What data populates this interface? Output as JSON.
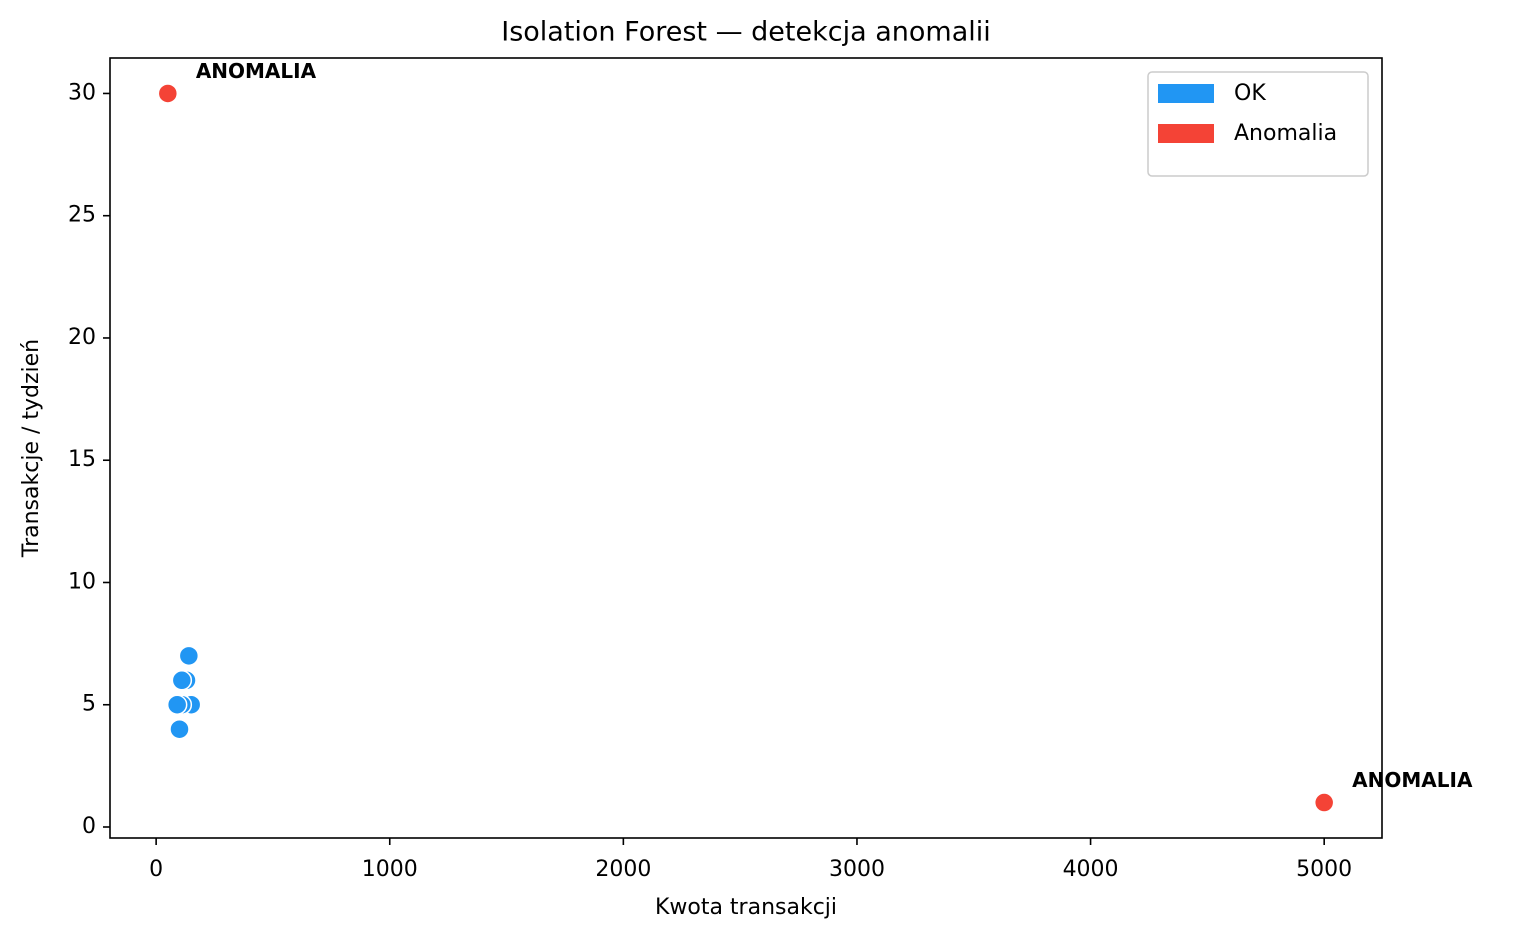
{
  "chart_data": {
    "type": "scatter",
    "title": "Isolation Forest — detekcja anomalii",
    "xlabel": "Kwota transakcji",
    "ylabel": "Transakcje / tydzień",
    "series": [
      {
        "name": "OK",
        "color": "#2196f3",
        "x": [
          100,
          140,
          130,
          110,
          150,
          110,
          90
        ],
        "values": [
          4,
          7,
          6,
          6,
          5,
          5,
          5
        ]
      },
      {
        "name": "Anomalia",
        "color": "#f44336",
        "x": [
          50,
          5000
        ],
        "values": [
          30,
          1
        ],
        "point_labels": [
          "ANOMALIA",
          "ANOMALIA"
        ]
      }
    ],
    "xlim": [
      -197.5,
      5247.5
    ],
    "xticks": [
      0,
      1000,
      2000,
      3000,
      4000,
      5000
    ],
    "ylim": [
      -0.45,
      31.45
    ],
    "yticks": [
      0,
      5,
      10,
      15,
      20,
      25,
      30
    ],
    "legend": "upper right",
    "grid": false
  }
}
